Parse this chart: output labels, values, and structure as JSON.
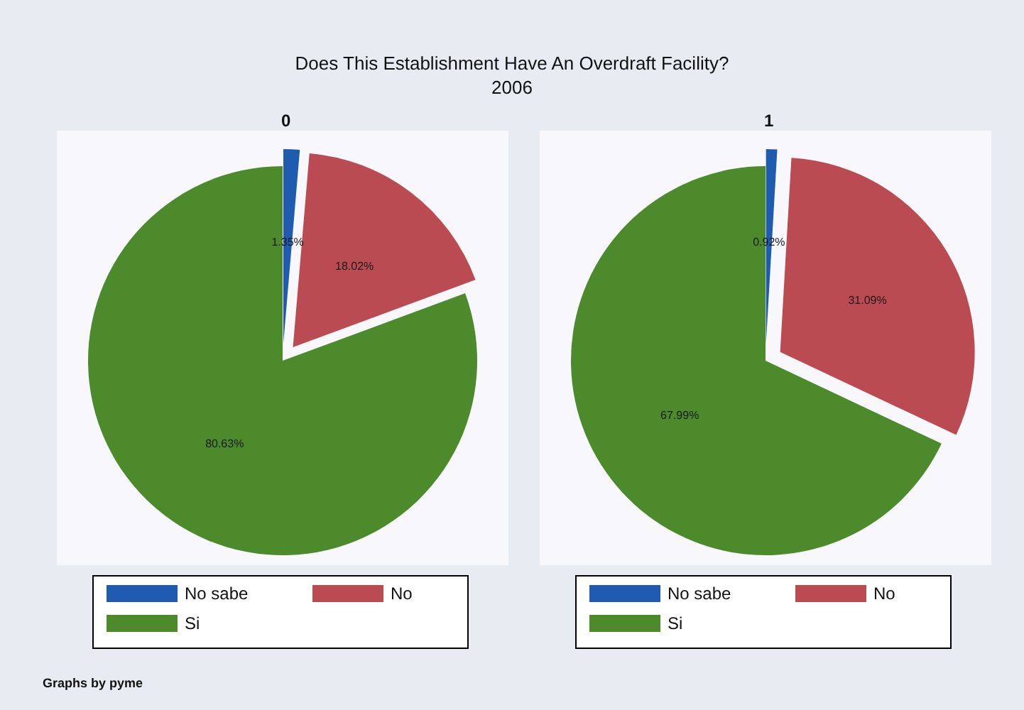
{
  "chart_data": [
    {
      "type": "pie",
      "title": "Does This Establishment Have An Overdraft Facility?",
      "subtitle": "2006",
      "annotations": [
        "0",
        "Graphs by pyme"
      ],
      "categories": [
        "No sabe",
        "No",
        "Si"
      ],
      "values": [
        1.35,
        18.02,
        80.63
      ],
      "value_labels": [
        "1.35%",
        "18.02%",
        "80.63%"
      ],
      "colors": [
        "#1f5cb0",
        "#bb4b52",
        "#4c8a2c"
      ],
      "legend": "bottom"
    },
    {
      "type": "pie",
      "annotations": [
        "1"
      ],
      "categories": [
        "No sabe",
        "No",
        "Si"
      ],
      "values": [
        0.92,
        31.09,
        67.99
      ],
      "value_labels": [
        "0.92%",
        "31.09%",
        "67.99%"
      ],
      "colors": [
        "#1f5cb0",
        "#bb4b52",
        "#4c8a2c"
      ],
      "legend": "bottom"
    }
  ]
}
